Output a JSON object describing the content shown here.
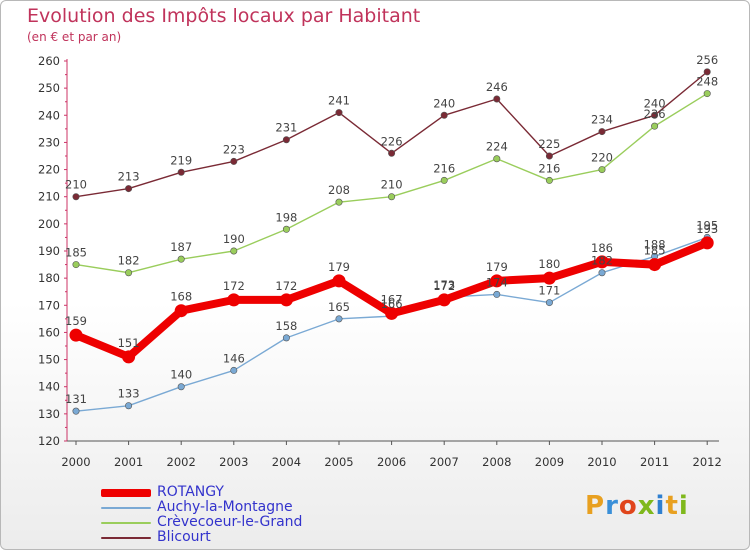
{
  "title": "Evolution des Impôts locaux par Habitant",
  "subtitle": "(en € et par an)",
  "logo": "Proxiti",
  "chart_data": {
    "type": "line",
    "title": "Evolution des Impôts locaux par Habitant",
    "subtitle": "(en € et par an)",
    "x": [
      "2000",
      "2001",
      "2002",
      "2003",
      "2004",
      "2005",
      "2006",
      "2007",
      "2008",
      "2009",
      "2010",
      "2011",
      "2012"
    ],
    "yticks": [
      120,
      130,
      140,
      150,
      160,
      170,
      180,
      190,
      200,
      210,
      220,
      230,
      240,
      250,
      260
    ],
    "ylim": [
      120,
      260
    ],
    "grid": false,
    "legend_position": "bottom-left",
    "series": [
      {
        "name": "ROTANGY",
        "color": "#ee0000",
        "values": [
          159,
          151,
          168,
          172,
          172,
          179,
          167,
          172,
          179,
          180,
          186,
          185,
          193
        ]
      },
      {
        "name": "Auchy-la-Montagne",
        "color": "#7aa9d4",
        "values": [
          131,
          133,
          140,
          146,
          158,
          165,
          166,
          173,
          174,
          171,
          182,
          188,
          195
        ]
      },
      {
        "name": "Crèvecoeur-le-Grand",
        "color": "#9acd5c",
        "values": [
          185,
          182,
          187,
          190,
          198,
          208,
          210,
          216,
          224,
          216,
          220,
          236,
          248
        ]
      },
      {
        "name": "Blicourt",
        "color": "#7a2a35",
        "values": [
          210,
          213,
          219,
          223,
          231,
          241,
          226,
          240,
          246,
          225,
          234,
          240,
          256
        ]
      }
    ]
  }
}
